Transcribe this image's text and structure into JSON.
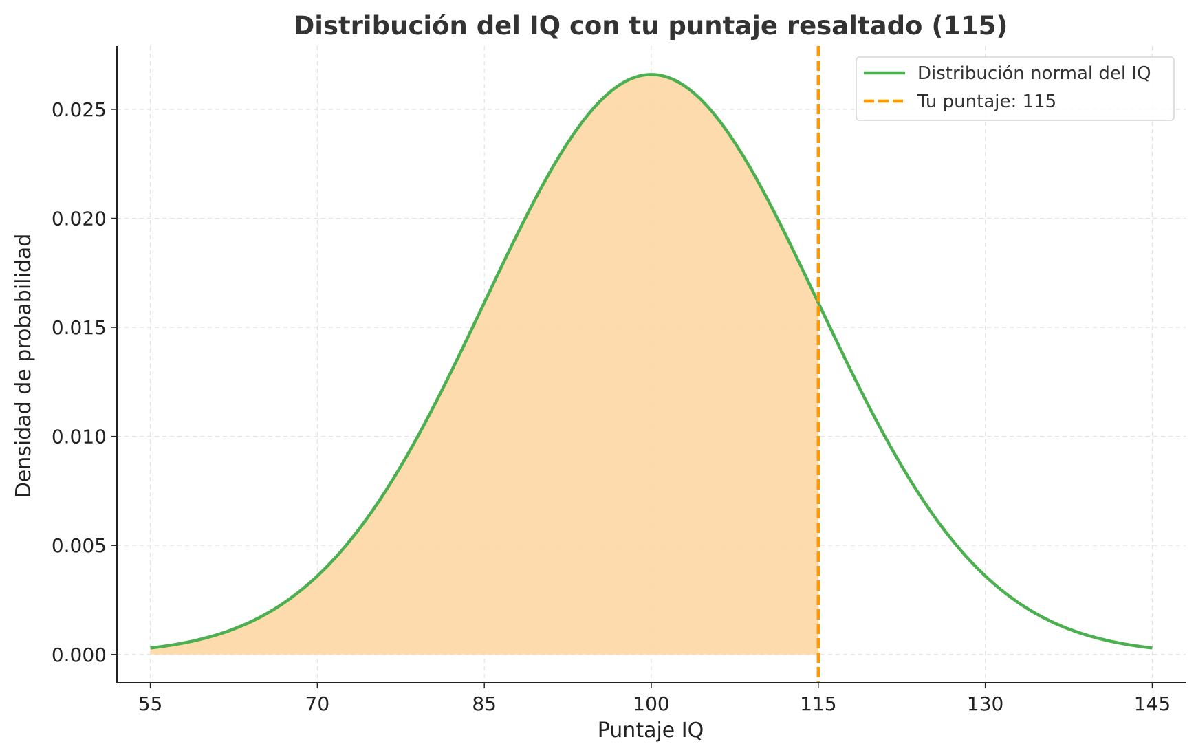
{
  "chart_data": {
    "type": "line",
    "title": "Distribución del IQ con tu puntaje resaltado (115)",
    "xlabel": "Puntaje IQ",
    "ylabel": "Densidad de probabilidad",
    "xlim": [
      52,
      148
    ],
    "ylim": [
      -0.0013,
      0.0279
    ],
    "x_ticks": [
      55,
      70,
      85,
      100,
      115,
      130,
      145
    ],
    "x_tick_labels": [
      "55",
      "70",
      "85",
      "100",
      "115",
      "130",
      "145"
    ],
    "y_ticks": [
      0.0,
      0.005,
      0.01,
      0.015,
      0.02,
      0.025
    ],
    "y_tick_labels": [
      "0.000",
      "0.005",
      "0.010",
      "0.015",
      "0.020",
      "0.025"
    ],
    "grid": true,
    "legend_position": "top-right",
    "series": [
      {
        "name": "Distribución normal del IQ",
        "color": "#4caf50",
        "style": "solid",
        "distribution": "normal",
        "mean": 100,
        "std": 15,
        "x_range": [
          55,
          145
        ],
        "x": [
          55,
          60,
          65,
          70,
          75,
          80,
          85,
          90,
          95,
          100,
          105,
          110,
          115,
          120,
          125,
          130,
          135,
          140,
          145
        ],
        "y": [
          0.0003,
          0.00076,
          0.00177,
          0.0036,
          0.00664,
          0.01093,
          0.01613,
          0.0213,
          0.02516,
          0.0266,
          0.02516,
          0.0213,
          0.01613,
          0.01093,
          0.00664,
          0.0036,
          0.00177,
          0.00076,
          0.0003
        ]
      },
      {
        "name": "Tu puntaje: 115",
        "color": "#ff9800",
        "style": "dashed",
        "type": "vline",
        "x": 115
      }
    ],
    "shaded_region": {
      "x_from": 55,
      "x_to": 115,
      "color": "#fdd9a8"
    }
  }
}
